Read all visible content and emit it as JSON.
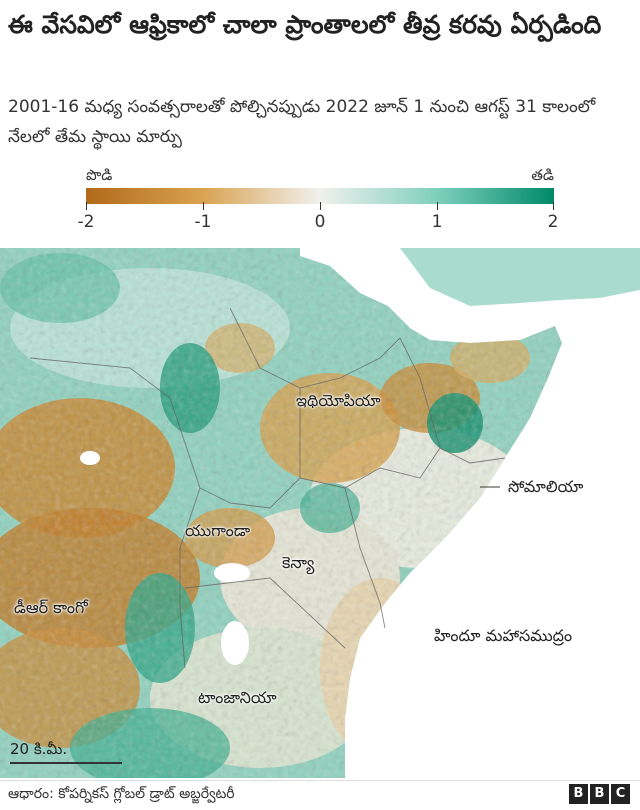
{
  "title": "ఈ వేసవిలో ఆఫ్రికాలో చాలా ప్రాంతాలలో తీవ్ర కరవు ఏర్పడింది",
  "subtitle": "2001-16 మధ్య సంవత్సరాలతో పోల్చినప్పుడు 2022 జూన్ 1 నుంచి ఆగస్ట్ 31 కాలంలో నేలలో తేమ స్థాయి మార్పు",
  "legend": {
    "dry_label": "పొడి",
    "wet_label": "తడి",
    "ticks": [
      "-2",
      "-1",
      "0",
      "1",
      "2"
    ],
    "min": -2,
    "max": 2,
    "colors": [
      "#b06a1a",
      "#d9a352",
      "#f1f1ee",
      "#7fcfbd",
      "#008a69"
    ]
  },
  "map_labels": {
    "ethiopia": "ఇథియోపియా",
    "somalia": "సోమాలియా",
    "uganda": "యుగాండా",
    "kenya": "కెన్యా",
    "drc": "డీఆర్ కాంగో",
    "indian_ocean": "హిందూ మహాసముద్రం",
    "tanzania": "టాంజానియా"
  },
  "scale": {
    "label": "20 కి.మీ."
  },
  "source": "ఆధారం: కోపర్నికస్ గ్లోబల్ డ్రాట్ అబ్జర్వేటరీ",
  "brand": [
    "B",
    "B",
    "C"
  ]
}
